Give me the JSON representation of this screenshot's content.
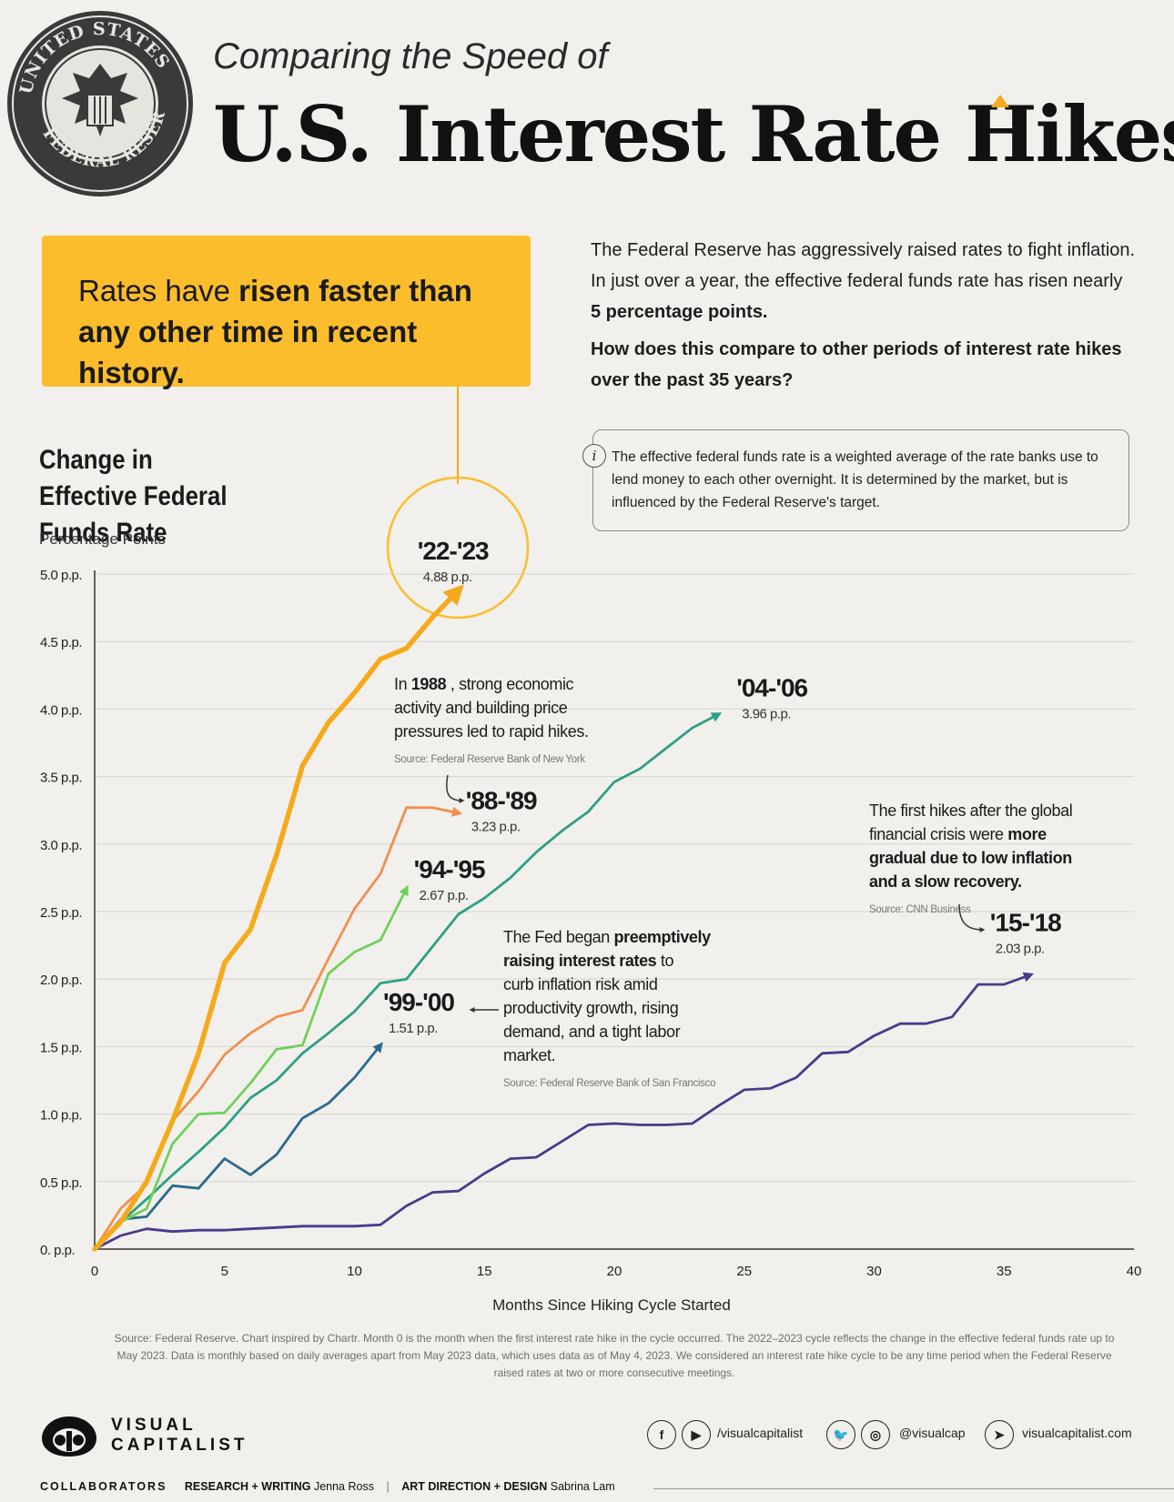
{
  "header": {
    "subtitle": "Comparing the Speed of",
    "title": "U.S. Interest Rate Hikes",
    "seal_text": "UNITED STATES FEDERAL RESERVE SYSTEM"
  },
  "callout": {
    "pre": "Rates have ",
    "bold": "risen faster than any other time in recent history."
  },
  "intro": {
    "paragraph": "The Federal Reserve has aggressively raised rates to fight inflation. In just over a year, the effective federal funds rate has risen nearly ",
    "paragraph_bold": "5 percentage points.",
    "question": "How does this compare to other periods of interest rate hikes over the past 35 years?"
  },
  "info": {
    "icon": "i",
    "text": "The effective federal funds rate is a weighted average of the rate banks use to lend money to each other overnight. It is determined by the market, but is influenced by the Federal Reserve's target."
  },
  "chart_data": {
    "type": "line",
    "title": "Change in Effective Federal Funds Rate",
    "ylabel": "Percentage Points",
    "xlabel": "Months Since Hiking Cycle Started",
    "xlim": [
      0,
      40
    ],
    "ylim": [
      0,
      5
    ],
    "x_ticks": [
      "0",
      "5",
      "10",
      "15",
      "20",
      "25",
      "30",
      "35",
      "40"
    ],
    "y_ticks": [
      "0. p.p.",
      "0.5 p.p.",
      "1.0 p.p.",
      "1.5 p.p.",
      "2.0 p.p.",
      "2.5 p.p.",
      "3.0 p.p.",
      "3.5 p.p.",
      "4.0 p.p.",
      "4.5 p.p.",
      "5.0 p.p."
    ],
    "grid": true,
    "series": [
      {
        "name": "'22-'23",
        "value_label": "4.88 p.p.",
        "color": "#f5a91b",
        "x": [
          0,
          1,
          2,
          3,
          4,
          5,
          6,
          7,
          8,
          9,
          10,
          11,
          12,
          13,
          14
        ],
        "y": [
          0,
          0.2,
          0.5,
          0.95,
          1.45,
          2.12,
          2.37,
          2.92,
          3.58,
          3.9,
          4.12,
          4.37,
          4.45,
          4.68,
          4.88
        ]
      },
      {
        "name": "'04-'06",
        "value_label": "3.96 p.p.",
        "color": "#2e9f85",
        "x": [
          0,
          1,
          2,
          3,
          4,
          5,
          6,
          7,
          8,
          9,
          10,
          11,
          12,
          13,
          14,
          15,
          16,
          17,
          18,
          19,
          20,
          21,
          22,
          23,
          24
        ],
        "y": [
          0,
          0.2,
          0.37,
          0.55,
          0.72,
          0.9,
          1.12,
          1.25,
          1.45,
          1.6,
          1.76,
          1.97,
          2.0,
          2.24,
          2.48,
          2.6,
          2.75,
          2.94,
          3.1,
          3.24,
          3.46,
          3.56,
          3.71,
          3.86,
          3.96
        ]
      },
      {
        "name": "'88-'89",
        "value_label": "3.23 p.p.",
        "color": "#f08f4f",
        "x": [
          0,
          1,
          2,
          3,
          4,
          5,
          6,
          7,
          8,
          9,
          10,
          11,
          12,
          13,
          14
        ],
        "y": [
          0,
          0.3,
          0.48,
          0.95,
          1.17,
          1.44,
          1.6,
          1.72,
          1.77,
          2.15,
          2.52,
          2.78,
          3.27,
          3.27,
          3.23
        ]
      },
      {
        "name": "'94-'95",
        "value_label": "2.67 p.p.",
        "color": "#72cf5a",
        "x": [
          0,
          1,
          2,
          3,
          4,
          5,
          6,
          7,
          8,
          9,
          10,
          11,
          12
        ],
        "y": [
          0,
          0.2,
          0.3,
          0.78,
          1.0,
          1.01,
          1.23,
          1.48,
          1.51,
          2.04,
          2.2,
          2.29,
          2.67
        ]
      },
      {
        "name": "'99-'00",
        "value_label": "1.51 p.p.",
        "color": "#2b6a8e",
        "x": [
          0,
          1,
          2,
          3,
          4,
          5,
          6,
          7,
          8,
          9,
          10,
          11
        ],
        "y": [
          0,
          0.22,
          0.24,
          0.47,
          0.45,
          0.67,
          0.55,
          0.7,
          0.97,
          1.08,
          1.27,
          1.51
        ]
      },
      {
        "name": "'15-'18",
        "value_label": "2.03 p.p.",
        "color": "#4a3b8c",
        "x": [
          0,
          1,
          2,
          3,
          4,
          5,
          6,
          7,
          8,
          9,
          10,
          11,
          12,
          13,
          14,
          15,
          16,
          17,
          18,
          19,
          20,
          21,
          22,
          23,
          24,
          25,
          26,
          27,
          28,
          29,
          30,
          31,
          32,
          33,
          34,
          35,
          36
        ],
        "y": [
          0,
          0.1,
          0.15,
          0.13,
          0.14,
          0.14,
          0.15,
          0.16,
          0.17,
          0.17,
          0.17,
          0.18,
          0.32,
          0.42,
          0.43,
          0.56,
          0.67,
          0.68,
          0.8,
          0.92,
          0.93,
          0.92,
          0.92,
          0.93,
          1.06,
          1.18,
          1.19,
          1.27,
          1.45,
          1.46,
          1.58,
          1.67,
          1.67,
          1.72,
          1.96,
          1.96,
          2.03
        ]
      }
    ],
    "annotations": [
      {
        "text_pre": "In ",
        "text_bold": "1988",
        "text_post": ", strong economic activity and building price pressures led to rapid hikes.",
        "source": "Source: Federal Reserve Bank of New York"
      },
      {
        "text_pre": "The Fed began ",
        "text_bold": "preemptively raising interest rates",
        "text_post": " to curb inflation risk amid productivity growth, rising demand, and a tight labor market.",
        "source": "Source: Federal Reserve Bank of San Francisco"
      },
      {
        "text_pre": "The first hikes after the global financial crisis were ",
        "text_bold": "more gradual due to low inflation and a slow recovery.",
        "text_post": "",
        "source": "Source: CNN Business"
      }
    ]
  },
  "footnote": "Source: Federal Reserve. Chart inspired by Chartr. Month 0 is the month when the first interest rate hike in the cycle occurred. The 2022–2023 cycle reflects the change in the effective federal funds rate up to May 2023. Data is monthly based on daily averages apart from May 2023 data, which uses data as of May 4, 2023. We considered an interest rate hike cycle to be any time period when the Federal Reserve raised rates at two or more consecutive meetings.",
  "footer": {
    "logo_line1": "VISUAL",
    "logo_line2": "CAPITALIST",
    "handle_fb_yt": "/visualcapitalist",
    "handle_tw_ig": "@visualcap",
    "site": "visualcapitalist.com",
    "collaborators_label": "COLLABORATORS",
    "research_label": "RESEARCH + WRITING",
    "research_name": "Jenna Ross",
    "design_label": "ART DIRECTION + DESIGN",
    "design_name": "Sabrina Lam"
  }
}
